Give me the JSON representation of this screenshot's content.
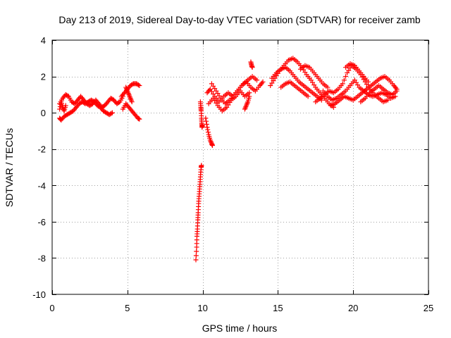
{
  "chart_data": {
    "type": "scatter",
    "title": "Day 213 of 2019, Sidereal Day-to-day VTEC variation (SDTVAR) for receiver zamb",
    "xlabel": "GPS time / hours",
    "ylabel": "SDTVAR / TECUs",
    "xlim": [
      0,
      25
    ],
    "ylim": [
      -10,
      4
    ],
    "xticks": [
      0,
      5,
      10,
      15,
      20,
      25
    ],
    "yticks": [
      -10,
      -8,
      -6,
      -4,
      -2,
      0,
      2,
      4
    ],
    "xtick_labels": [
      "0",
      "5",
      "10",
      "15",
      "20",
      "25"
    ],
    "ytick_labels": [
      "-10",
      "-8",
      "-6",
      "-4",
      "-2",
      "0",
      "2",
      "4"
    ],
    "grid": true,
    "marker": "+",
    "color": "#ff0000",
    "series": [
      {
        "name": "SDTVAR",
        "tracks": [
          [
            [
              0.5,
              0.5
            ],
            [
              0.7,
              0.8
            ],
            [
              0.9,
              1.0
            ],
            [
              1.1,
              0.9
            ],
            [
              1.3,
              0.6
            ],
            [
              1.5,
              0.5
            ],
            [
              1.7,
              0.7
            ],
            [
              1.9,
              0.9
            ],
            [
              2.1,
              0.7
            ],
            [
              2.3,
              0.5
            ],
            [
              2.5,
              0.4
            ],
            [
              2.7,
              0.5
            ],
            [
              2.9,
              0.7
            ],
            [
              3.1,
              0.5
            ],
            [
              3.3,
              0.3
            ],
            [
              3.5,
              0.4
            ],
            [
              3.7,
              0.6
            ],
            [
              3.9,
              0.8
            ],
            [
              4.1,
              0.7
            ],
            [
              4.3,
              0.5
            ],
            [
              4.5,
              0.6
            ],
            [
              4.7,
              0.9
            ]
          ],
          [
            [
              0.5,
              -0.3
            ],
            [
              0.6,
              -0.4
            ],
            [
              0.8,
              -0.2
            ],
            [
              1.0,
              -0.1
            ],
            [
              1.2,
              0.0
            ],
            [
              1.4,
              0.1
            ],
            [
              1.6,
              0.3
            ],
            [
              1.8,
              0.5
            ],
            [
              2.0,
              0.6
            ],
            [
              2.2,
              0.5
            ],
            [
              2.4,
              0.6
            ],
            [
              2.6,
              0.7
            ],
            [
              2.8,
              0.6
            ],
            [
              3.0,
              0.4
            ],
            [
              3.2,
              0.3
            ],
            [
              3.4,
              0.1
            ],
            [
              3.6,
              0.0
            ],
            [
              3.8,
              -0.1
            ],
            [
              4.0,
              0.0
            ]
          ],
          [
            [
              0.5,
              0.2
            ],
            [
              0.6,
              0.6
            ],
            [
              0.7,
              0.3
            ],
            [
              0.8,
              0.1
            ],
            [
              0.9,
              0.4
            ]
          ],
          [
            [
              4.6,
              0.9
            ],
            [
              4.8,
              1.1
            ],
            [
              5.0,
              1.3
            ],
            [
              5.2,
              1.5
            ],
            [
              5.4,
              1.6
            ],
            [
              5.6,
              1.6
            ],
            [
              5.8,
              1.5
            ]
          ],
          [
            [
              4.7,
              0.2
            ],
            [
              4.9,
              0.5
            ],
            [
              5.1,
              0.3
            ],
            [
              5.3,
              0.1
            ],
            [
              5.5,
              -0.1
            ],
            [
              5.7,
              -0.3
            ],
            [
              5.8,
              -0.35
            ]
          ],
          [
            [
              4.9,
              1.4
            ],
            [
              5.0,
              1.2
            ],
            [
              5.1,
              1.0
            ],
            [
              5.2,
              0.8
            ],
            [
              5.3,
              0.6
            ]
          ],
          [
            [
              9.55,
              -8.1
            ],
            [
              9.6,
              -7.4
            ],
            [
              9.62,
              -6.8
            ],
            [
              9.65,
              -6.4
            ],
            [
              9.68,
              -5.9
            ],
            [
              9.7,
              -5.5
            ],
            [
              9.73,
              -5.0
            ],
            [
              9.76,
              -4.6
            ],
            [
              9.8,
              -4.2
            ],
            [
              9.83,
              -3.8
            ],
            [
              9.86,
              -3.4
            ],
            [
              9.9,
              -3.0
            ],
            [
              9.92,
              -2.9
            ]
          ],
          [
            [
              9.85,
              0.6
            ],
            [
              9.88,
              0.3
            ],
            [
              9.9,
              0.1
            ],
            [
              9.92,
              -0.3
            ],
            [
              9.94,
              -0.6
            ],
            [
              9.96,
              -0.8
            ],
            [
              9.98,
              -0.7
            ]
          ],
          [
            [
              10.2,
              -0.3
            ],
            [
              10.3,
              -0.8
            ],
            [
              10.4,
              -1.2
            ],
            [
              10.5,
              -1.5
            ],
            [
              10.6,
              -1.7
            ],
            [
              10.65,
              -1.8
            ]
          ],
          [
            [
              10.3,
              1.1
            ],
            [
              10.5,
              1.3
            ],
            [
              10.8,
              0.9
            ],
            [
              11.1,
              0.6
            ],
            [
              11.4,
              0.9
            ],
            [
              11.7,
              1.1
            ],
            [
              12.0,
              0.9
            ],
            [
              12.3,
              1.2
            ],
            [
              12.6,
              1.5
            ],
            [
              12.9,
              1.7
            ],
            [
              13.2,
              1.4
            ],
            [
              13.5,
              1.2
            ],
            [
              13.8,
              1.5
            ],
            [
              14.0,
              1.7
            ]
          ],
          [
            [
              10.4,
              0.5
            ],
            [
              10.7,
              0.8
            ],
            [
              11.0,
              0.4
            ],
            [
              11.3,
              0.1
            ],
            [
              11.6,
              0.3
            ],
            [
              11.9,
              0.7
            ],
            [
              12.2,
              0.9
            ],
            [
              12.5,
              1.2
            ],
            [
              12.8,
              0.9
            ],
            [
              13.1,
              1.1
            ]
          ],
          [
            [
              10.6,
              1.6
            ],
            [
              10.9,
              1.2
            ],
            [
              11.2,
              0.8
            ],
            [
              11.5,
              0.5
            ],
            [
              11.8,
              0.7
            ],
            [
              12.1,
              1.0
            ],
            [
              12.4,
              1.3
            ],
            [
              12.7,
              1.6
            ],
            [
              13.0,
              1.8
            ],
            [
              13.3,
              2.0
            ],
            [
              13.6,
              1.8
            ]
          ],
          [
            [
              12.8,
              0.2
            ],
            [
              12.9,
              0.4
            ],
            [
              13.0,
              0.6
            ],
            [
              13.1,
              0.9
            ]
          ],
          [
            [
              13.2,
              2.8
            ],
            [
              13.25,
              2.6
            ],
            [
              13.3,
              2.5
            ]
          ],
          [
            [
              14.5,
              1.5
            ],
            [
              14.8,
              1.9
            ],
            [
              15.1,
              2.3
            ],
            [
              15.4,
              2.6
            ],
            [
              15.7,
              2.9
            ],
            [
              16.0,
              3.0
            ],
            [
              16.3,
              2.8
            ],
            [
              16.6,
              2.5
            ],
            [
              16.9,
              2.1
            ],
            [
              17.2,
              1.8
            ],
            [
              17.5,
              1.4
            ],
            [
              17.8,
              1.1
            ],
            [
              18.1,
              0.8
            ],
            [
              18.4,
              0.5
            ],
            [
              18.7,
              0.3
            ]
          ],
          [
            [
              14.6,
              1.9
            ],
            [
              14.9,
              2.2
            ],
            [
              15.2,
              2.4
            ],
            [
              15.5,
              2.5
            ],
            [
              15.8,
              2.3
            ],
            [
              16.1,
              2.0
            ],
            [
              16.4,
              1.7
            ],
            [
              16.7,
              1.5
            ],
            [
              17.0,
              1.3
            ],
            [
              17.3,
              1.1
            ],
            [
              17.6,
              0.9
            ],
            [
              17.9,
              0.7
            ]
          ],
          [
            [
              15.2,
              1.4
            ],
            [
              15.5,
              1.6
            ],
            [
              15.8,
              1.7
            ],
            [
              16.1,
              1.5
            ],
            [
              16.4,
              1.3
            ],
            [
              16.7,
              1.1
            ],
            [
              17.0,
              0.9
            ]
          ],
          [
            [
              16.5,
              2.4
            ],
            [
              16.8,
              2.6
            ],
            [
              17.1,
              2.5
            ],
            [
              17.4,
              2.2
            ],
            [
              17.7,
              1.9
            ],
            [
              18.0,
              1.6
            ],
            [
              18.3,
              1.4
            ]
          ],
          [
            [
              17.5,
              0.6
            ],
            [
              17.8,
              0.8
            ],
            [
              18.1,
              1.0
            ],
            [
              18.4,
              1.2
            ],
            [
              18.7,
              1.1
            ],
            [
              19.0,
              1.3
            ],
            [
              19.3,
              1.6
            ],
            [
              19.6,
              2.2
            ],
            [
              19.9,
              2.6
            ],
            [
              20.2,
              2.4
            ],
            [
              20.5,
              2.1
            ],
            [
              20.8,
              1.7
            ],
            [
              21.1,
              1.3
            ],
            [
              21.4,
              1.0
            ],
            [
              21.7,
              0.8
            ],
            [
              22.0,
              0.6
            ],
            [
              22.3,
              0.7
            ]
          ],
          [
            [
              18.0,
              1.2
            ],
            [
              18.3,
              0.9
            ],
            [
              18.6,
              0.7
            ],
            [
              18.9,
              0.8
            ],
            [
              19.2,
              1.0
            ],
            [
              19.5,
              1.2
            ],
            [
              19.8,
              1.5
            ],
            [
              20.1,
              1.8
            ],
            [
              20.4,
              1.4
            ],
            [
              20.7,
              1.2
            ],
            [
              21.0,
              1.0
            ],
            [
              21.3,
              0.9
            ],
            [
              21.6,
              1.0
            ],
            [
              21.9,
              1.1
            ],
            [
              22.2,
              1.0
            ],
            [
              22.5,
              0.8
            ],
            [
              22.8,
              0.9
            ]
          ],
          [
            [
              18.5,
              0.4
            ],
            [
              18.8,
              0.5
            ],
            [
              19.1,
              0.7
            ],
            [
              19.4,
              0.9
            ],
            [
              19.7,
              0.8
            ],
            [
              20.0,
              0.7
            ],
            [
              20.3,
              0.9
            ],
            [
              20.6,
              1.1
            ],
            [
              20.9,
              1.3
            ],
            [
              21.2,
              1.5
            ],
            [
              21.5,
              1.7
            ],
            [
              21.8,
              1.9
            ],
            [
              22.1,
              2.0
            ],
            [
              22.4,
              1.8
            ],
            [
              22.7,
              1.5
            ],
            [
              22.9,
              1.3
            ]
          ],
          [
            [
              19.5,
              2.5
            ],
            [
              19.8,
              2.7
            ],
            [
              20.1,
              2.6
            ],
            [
              20.4,
              2.3
            ],
            [
              20.7,
              2.0
            ],
            [
              21.0,
              1.7
            ]
          ],
          [
            [
              20.5,
              0.6
            ],
            [
              20.8,
              0.8
            ],
            [
              21.1,
              1.1
            ],
            [
              21.4,
              1.3
            ],
            [
              21.7,
              1.5
            ],
            [
              22.0,
              1.3
            ],
            [
              22.3,
              1.1
            ],
            [
              22.6,
              1.0
            ],
            [
              22.9,
              1.2
            ]
          ]
        ]
      }
    ]
  }
}
